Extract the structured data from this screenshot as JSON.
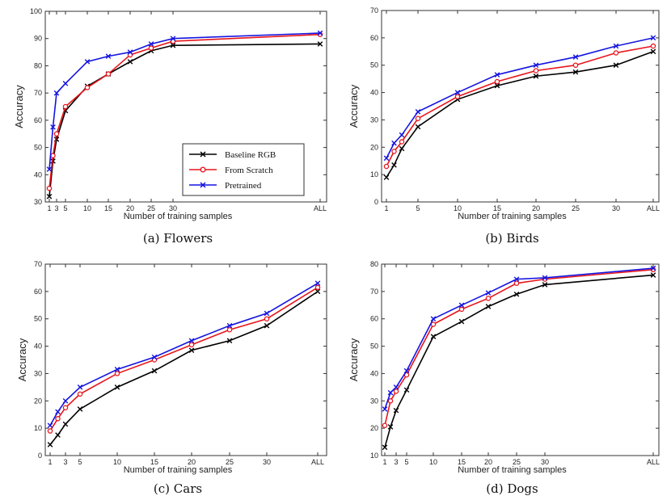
{
  "chart_data": [
    {
      "type": "line",
      "caption": "(a) Flowers",
      "xlabel": "Number of training samples",
      "ylabel": "Accuracy",
      "x_ticks": [
        "1",
        "3",
        "5",
        "10",
        "15",
        "20",
        "25",
        "30",
        "ALL"
      ],
      "ylim": [
        30,
        100
      ],
      "y_ticks": [
        30,
        40,
        50,
        60,
        70,
        80,
        90,
        100
      ],
      "legend": "lower-right",
      "series": [
        {
          "name": "Baseline RGB",
          "color": "#000000",
          "marker": "x",
          "x": [
            1,
            2,
            3,
            5,
            10,
            15,
            20,
            25,
            30,
            "ALL"
          ],
          "values": [
            32,
            45,
            53,
            63.5,
            72.5,
            77,
            81.5,
            85.5,
            87.5,
            88
          ]
        },
        {
          "name": "From Scratch",
          "color": "#e8151b",
          "marker": "o",
          "x": [
            1,
            2,
            3,
            5,
            10,
            15,
            20,
            25,
            30,
            "ALL"
          ],
          "values": [
            35,
            47,
            55,
            65,
            72,
            77,
            84,
            86.5,
            89,
            91.5
          ]
        },
        {
          "name": "Pretrained",
          "color": "#1414e0",
          "marker": "x",
          "x": [
            1,
            2,
            3,
            5,
            10,
            15,
            20,
            25,
            30,
            "ALL"
          ],
          "values": [
            42,
            57.5,
            70,
            73.5,
            81.5,
            83.5,
            85,
            88,
            90,
            92
          ]
        }
      ]
    },
    {
      "type": "line",
      "caption": "(b) Birds",
      "xlabel": "Number of training samples",
      "ylabel": "Accuracy",
      "x_ticks": [
        "1",
        "5",
        "10",
        "15",
        "20",
        "25",
        "30",
        "ALL"
      ],
      "ylim": [
        0,
        70
      ],
      "y_ticks": [
        0,
        10,
        20,
        30,
        40,
        50,
        60,
        70
      ],
      "series": [
        {
          "name": "Baseline RGB",
          "color": "#000000",
          "marker": "x",
          "x": [
            1,
            2,
            3,
            5,
            10,
            15,
            20,
            25,
            30,
            "ALL"
          ],
          "values": [
            9,
            13.5,
            19.5,
            27.5,
            37.5,
            42.5,
            46,
            47.5,
            50,
            55
          ]
        },
        {
          "name": "From Scratch",
          "color": "#e8151b",
          "marker": "o",
          "x": [
            1,
            2,
            3,
            5,
            10,
            15,
            20,
            25,
            30,
            "ALL"
          ],
          "values": [
            13,
            18.5,
            22,
            30.5,
            38.5,
            44,
            48,
            50,
            54.5,
            57
          ]
        },
        {
          "name": "Pretrained",
          "color": "#1414e0",
          "marker": "x",
          "x": [
            1,
            2,
            3,
            5,
            10,
            15,
            20,
            25,
            30,
            "ALL"
          ],
          "values": [
            16,
            21.5,
            24.5,
            33,
            40,
            46.5,
            50,
            53,
            57,
            60
          ]
        }
      ]
    },
    {
      "type": "line",
      "caption": "(c) Cars",
      "xlabel": "Number of training samples",
      "ylabel": "Accuracy",
      "x_ticks": [
        "1",
        "3",
        "5",
        "10",
        "15",
        "20",
        "25",
        "30",
        "ALL"
      ],
      "ylim": [
        0,
        70
      ],
      "y_ticks": [
        0,
        10,
        20,
        30,
        40,
        50,
        60,
        70
      ],
      "series": [
        {
          "name": "Baseline RGB",
          "color": "#000000",
          "marker": "x",
          "x": [
            1,
            2,
            3,
            5,
            10,
            15,
            20,
            25,
            30,
            "ALL"
          ],
          "values": [
            4,
            7.5,
            11.5,
            17,
            25,
            31,
            38.5,
            42,
            47.5,
            60
          ]
        },
        {
          "name": "From Scratch",
          "color": "#e8151b",
          "marker": "o",
          "x": [
            1,
            2,
            3,
            5,
            10,
            15,
            20,
            25,
            30,
            "ALL"
          ],
          "values": [
            9,
            13.5,
            17.5,
            22.5,
            30,
            35,
            40.5,
            46,
            50,
            61.5
          ]
        },
        {
          "name": "Pretrained",
          "color": "#1414e0",
          "marker": "x",
          "x": [
            1,
            2,
            3,
            5,
            10,
            15,
            20,
            25,
            30,
            "ALL"
          ],
          "values": [
            11,
            16,
            20,
            25,
            31.5,
            36,
            42,
            47.5,
            52,
            63
          ]
        }
      ]
    },
    {
      "type": "line",
      "caption": "(d) Dogs",
      "xlabel": "Number of training samples",
      "ylabel": "Accuracy",
      "x_ticks": [
        "1",
        "3",
        "5",
        "10",
        "15",
        "20",
        "25",
        "30",
        "ALL"
      ],
      "ylim": [
        10,
        80
      ],
      "y_ticks": [
        10,
        20,
        30,
        40,
        50,
        60,
        70,
        80
      ],
      "series": [
        {
          "name": "Baseline RGB",
          "color": "#000000",
          "marker": "x",
          "x": [
            1,
            2,
            3,
            5,
            10,
            15,
            20,
            25,
            30,
            "ALL"
          ],
          "values": [
            13,
            20.5,
            26.5,
            34,
            53.5,
            59,
            64.5,
            69,
            72.5,
            76
          ]
        },
        {
          "name": "From Scratch",
          "color": "#e8151b",
          "marker": "o",
          "x": [
            1,
            2,
            3,
            5,
            10,
            15,
            20,
            25,
            30,
            "ALL"
          ],
          "values": [
            21,
            30,
            33.5,
            39.5,
            58,
            63.5,
            67.5,
            73,
            74.5,
            78
          ]
        },
        {
          "name": "Pretrained",
          "color": "#1414e0",
          "marker": "x",
          "x": [
            1,
            2,
            3,
            5,
            10,
            15,
            20,
            25,
            30,
            "ALL"
          ],
          "values": [
            27,
            33,
            35,
            41,
            60,
            65,
            69.5,
            74.5,
            75,
            78.5
          ]
        }
      ]
    }
  ]
}
